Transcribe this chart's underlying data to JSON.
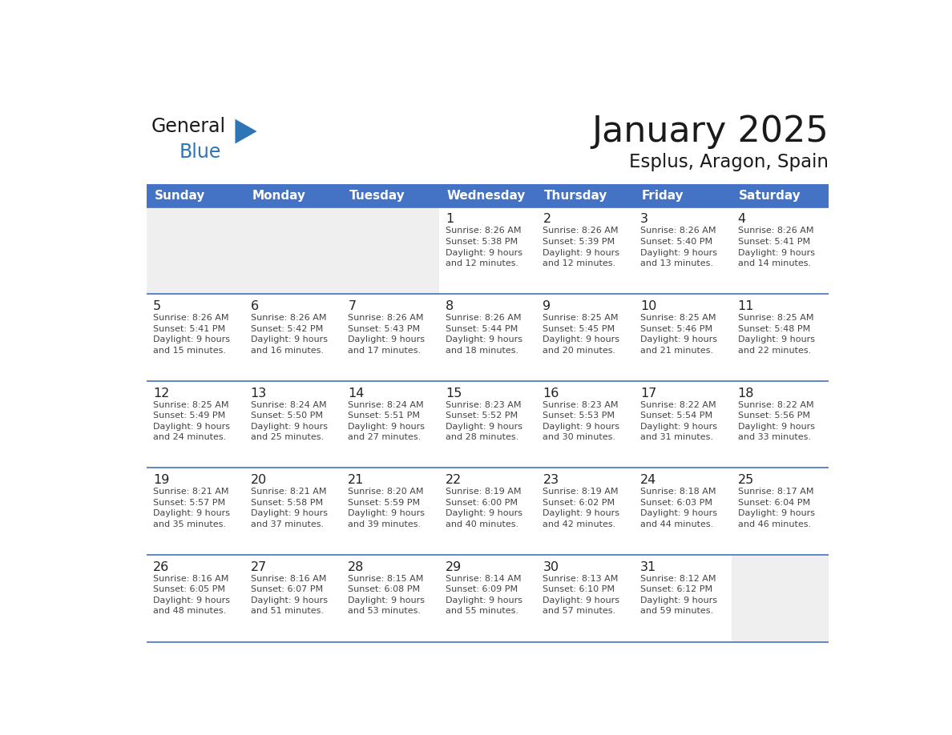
{
  "title": "January 2025",
  "subtitle": "Esplus, Aragon, Spain",
  "days_of_week": [
    "Sunday",
    "Monday",
    "Tuesday",
    "Wednesday",
    "Thursday",
    "Friday",
    "Saturday"
  ],
  "header_bg": "#4472C4",
  "header_text": "#FFFFFF",
  "cell_bg_normal": "#FFFFFF",
  "cell_bg_alt": "#EFEFEF",
  "line_color": "#4472C4",
  "text_color": "#444444",
  "day_num_color": "#222222",
  "logo_general_color": "#1a1a1a",
  "logo_blue_color": "#2E75B6",
  "logo_triangle_color": "#2E75B6",
  "calendar_data": [
    [
      null,
      null,
      null,
      {
        "day": 1,
        "sunrise": "8:26 AM",
        "sunset": "5:38 PM",
        "daylight": "9 hours\nand 12 minutes."
      },
      {
        "day": 2,
        "sunrise": "8:26 AM",
        "sunset": "5:39 PM",
        "daylight": "9 hours\nand 12 minutes."
      },
      {
        "day": 3,
        "sunrise": "8:26 AM",
        "sunset": "5:40 PM",
        "daylight": "9 hours\nand 13 minutes."
      },
      {
        "day": 4,
        "sunrise": "8:26 AM",
        "sunset": "5:41 PM",
        "daylight": "9 hours\nand 14 minutes."
      }
    ],
    [
      {
        "day": 5,
        "sunrise": "8:26 AM",
        "sunset": "5:41 PM",
        "daylight": "9 hours\nand 15 minutes."
      },
      {
        "day": 6,
        "sunrise": "8:26 AM",
        "sunset": "5:42 PM",
        "daylight": "9 hours\nand 16 minutes."
      },
      {
        "day": 7,
        "sunrise": "8:26 AM",
        "sunset": "5:43 PM",
        "daylight": "9 hours\nand 17 minutes."
      },
      {
        "day": 8,
        "sunrise": "8:26 AM",
        "sunset": "5:44 PM",
        "daylight": "9 hours\nand 18 minutes."
      },
      {
        "day": 9,
        "sunrise": "8:25 AM",
        "sunset": "5:45 PM",
        "daylight": "9 hours\nand 20 minutes."
      },
      {
        "day": 10,
        "sunrise": "8:25 AM",
        "sunset": "5:46 PM",
        "daylight": "9 hours\nand 21 minutes."
      },
      {
        "day": 11,
        "sunrise": "8:25 AM",
        "sunset": "5:48 PM",
        "daylight": "9 hours\nand 22 minutes."
      }
    ],
    [
      {
        "day": 12,
        "sunrise": "8:25 AM",
        "sunset": "5:49 PM",
        "daylight": "9 hours\nand 24 minutes."
      },
      {
        "day": 13,
        "sunrise": "8:24 AM",
        "sunset": "5:50 PM",
        "daylight": "9 hours\nand 25 minutes."
      },
      {
        "day": 14,
        "sunrise": "8:24 AM",
        "sunset": "5:51 PM",
        "daylight": "9 hours\nand 27 minutes."
      },
      {
        "day": 15,
        "sunrise": "8:23 AM",
        "sunset": "5:52 PM",
        "daylight": "9 hours\nand 28 minutes."
      },
      {
        "day": 16,
        "sunrise": "8:23 AM",
        "sunset": "5:53 PM",
        "daylight": "9 hours\nand 30 minutes."
      },
      {
        "day": 17,
        "sunrise": "8:22 AM",
        "sunset": "5:54 PM",
        "daylight": "9 hours\nand 31 minutes."
      },
      {
        "day": 18,
        "sunrise": "8:22 AM",
        "sunset": "5:56 PM",
        "daylight": "9 hours\nand 33 minutes."
      }
    ],
    [
      {
        "day": 19,
        "sunrise": "8:21 AM",
        "sunset": "5:57 PM",
        "daylight": "9 hours\nand 35 minutes."
      },
      {
        "day": 20,
        "sunrise": "8:21 AM",
        "sunset": "5:58 PM",
        "daylight": "9 hours\nand 37 minutes."
      },
      {
        "day": 21,
        "sunrise": "8:20 AM",
        "sunset": "5:59 PM",
        "daylight": "9 hours\nand 39 minutes."
      },
      {
        "day": 22,
        "sunrise": "8:19 AM",
        "sunset": "6:00 PM",
        "daylight": "9 hours\nand 40 minutes."
      },
      {
        "day": 23,
        "sunrise": "8:19 AM",
        "sunset": "6:02 PM",
        "daylight": "9 hours\nand 42 minutes."
      },
      {
        "day": 24,
        "sunrise": "8:18 AM",
        "sunset": "6:03 PM",
        "daylight": "9 hours\nand 44 minutes."
      },
      {
        "day": 25,
        "sunrise": "8:17 AM",
        "sunset": "6:04 PM",
        "daylight": "9 hours\nand 46 minutes."
      }
    ],
    [
      {
        "day": 26,
        "sunrise": "8:16 AM",
        "sunset": "6:05 PM",
        "daylight": "9 hours\nand 48 minutes."
      },
      {
        "day": 27,
        "sunrise": "8:16 AM",
        "sunset": "6:07 PM",
        "daylight": "9 hours\nand 51 minutes."
      },
      {
        "day": 28,
        "sunrise": "8:15 AM",
        "sunset": "6:08 PM",
        "daylight": "9 hours\nand 53 minutes."
      },
      {
        "day": 29,
        "sunrise": "8:14 AM",
        "sunset": "6:09 PM",
        "daylight": "9 hours\nand 55 minutes."
      },
      {
        "day": 30,
        "sunrise": "8:13 AM",
        "sunset": "6:10 PM",
        "daylight": "9 hours\nand 57 minutes."
      },
      {
        "day": 31,
        "sunrise": "8:12 AM",
        "sunset": "6:12 PM",
        "daylight": "9 hours\nand 59 minutes."
      },
      null
    ]
  ]
}
